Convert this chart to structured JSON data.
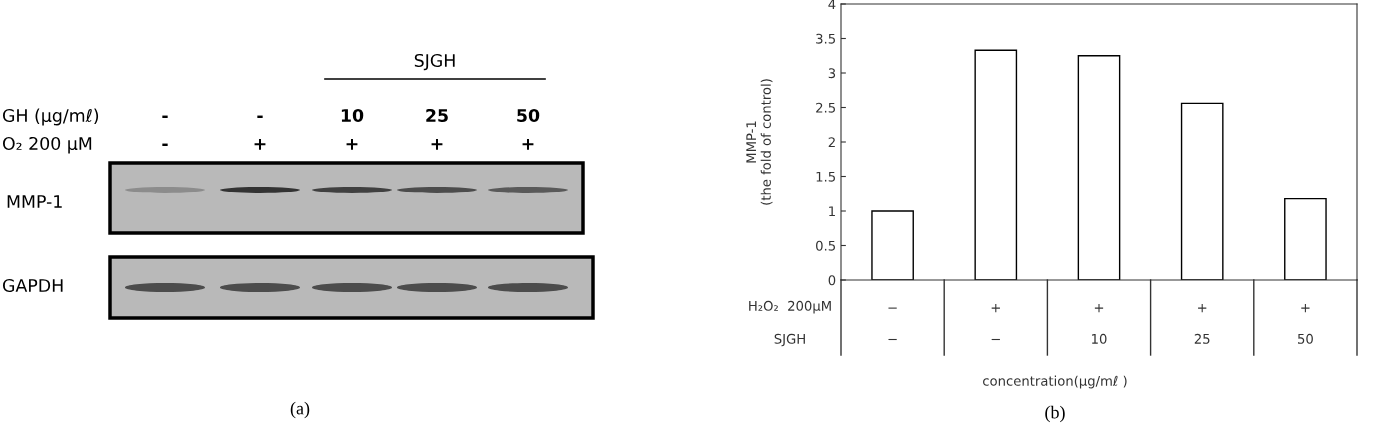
{
  "chart_data": [
    {
      "type": "other",
      "title": "(a)",
      "annotations": [
        "SJGH",
        "GH (μg/mℓ)",
        "O₂ 200 μM",
        "-",
        "-",
        "10",
        "25",
        "50",
        "-",
        "+",
        "+",
        "+",
        "+",
        "MMP-1",
        "GAPDH"
      ]
    },
    {
      "type": "bar",
      "title": "(b)",
      "ylabel": "MMP-1\n(the fold of control)",
      "xlabel": "concentration(μg/mℓ )",
      "categories": [
        "−",
        "+",
        "+",
        "+",
        "+"
      ],
      "values": [
        1,
        3.33,
        3.25,
        2.56,
        1.18
      ],
      "color": "#ffffff",
      "ylim": [
        0,
        4
      ],
      "yticks": [
        0,
        0.5,
        1,
        1.5,
        2,
        2.5,
        3,
        3.5,
        4
      ],
      "annotations": [
        "H₂O₂  200μM",
        "SJGH",
        "−",
        "−",
        "10",
        "25",
        "50"
      ]
    }
  ]
}
